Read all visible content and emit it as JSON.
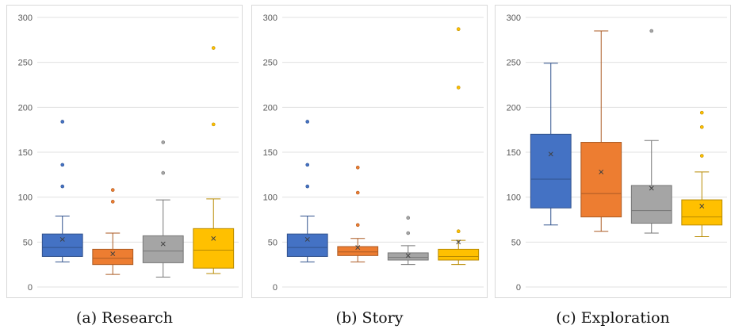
{
  "chart_data": [
    {
      "type": "box",
      "caption": "(a) Research",
      "ylim": [
        0,
        300
      ],
      "yticks": [
        0,
        50,
        100,
        150,
        200,
        250,
        300
      ],
      "grid": true,
      "series": [
        {
          "color": "#4472c4",
          "whisker_low": 28,
          "q1": 34,
          "median": 44,
          "q3": 59,
          "whisker_high": 79,
          "mean": 53,
          "outliers": [
            112,
            136,
            184
          ]
        },
        {
          "color": "#ed7d31",
          "whisker_low": 14,
          "q1": 25,
          "median": 32,
          "q3": 42,
          "whisker_high": 60,
          "mean": 37,
          "outliers": [
            95,
            108
          ]
        },
        {
          "color": "#a5a5a5",
          "whisker_low": 11,
          "q1": 27,
          "median": 40,
          "q3": 57,
          "whisker_high": 97,
          "mean": 48,
          "outliers": [
            127,
            161
          ]
        },
        {
          "color": "#ffc000",
          "whisker_low": 15,
          "q1": 21,
          "median": 41,
          "q3": 65,
          "whisker_high": 98,
          "mean": 54,
          "outliers": [
            181,
            266
          ]
        }
      ]
    },
    {
      "type": "box",
      "caption": "(b) Story",
      "ylim": [
        0,
        300
      ],
      "yticks": [
        0,
        50,
        100,
        150,
        200,
        250,
        300
      ],
      "grid": true,
      "series": [
        {
          "color": "#4472c4",
          "whisker_low": 28,
          "q1": 34,
          "median": 44,
          "q3": 59,
          "whisker_high": 79,
          "mean": 53,
          "outliers": [
            112,
            136,
            184
          ]
        },
        {
          "color": "#ed7d31",
          "whisker_low": 28,
          "q1": 35,
          "median": 39,
          "q3": 45,
          "whisker_high": 54,
          "mean": 44,
          "outliers": [
            69,
            105,
            133
          ]
        },
        {
          "color": "#a5a5a5",
          "whisker_low": 25,
          "q1": 30,
          "median": 33,
          "q3": 38,
          "whisker_high": 46,
          "mean": 35,
          "outliers": [
            60,
            77
          ]
        },
        {
          "color": "#ffc000",
          "whisker_low": 25,
          "q1": 30,
          "median": 34,
          "q3": 42,
          "whisker_high": 52,
          "mean": 50,
          "outliers": [
            62,
            222,
            287
          ]
        }
      ]
    },
    {
      "type": "box",
      "caption": "(c) Exploration",
      "ylim": [
        0,
        300
      ],
      "yticks": [
        0,
        50,
        100,
        150,
        200,
        250,
        300
      ],
      "grid": true,
      "series": [
        {
          "color": "#4472c4",
          "whisker_low": 69,
          "q1": 88,
          "median": 120,
          "q3": 170,
          "whisker_high": 249,
          "mean": 148,
          "outliers": []
        },
        {
          "color": "#ed7d31",
          "whisker_low": 62,
          "q1": 78,
          "median": 104,
          "q3": 161,
          "whisker_high": 285,
          "mean": 128,
          "outliers": []
        },
        {
          "color": "#a5a5a5",
          "whisker_low": 60,
          "q1": 71,
          "median": 85,
          "q3": 113,
          "whisker_high": 163,
          "mean": 110,
          "outliers": [
            285
          ]
        },
        {
          "color": "#ffc000",
          "whisker_low": 56,
          "q1": 69,
          "median": 78,
          "q3": 97,
          "whisker_high": 128,
          "mean": 90,
          "outliers": [
            146,
            178,
            194
          ]
        }
      ]
    }
  ]
}
